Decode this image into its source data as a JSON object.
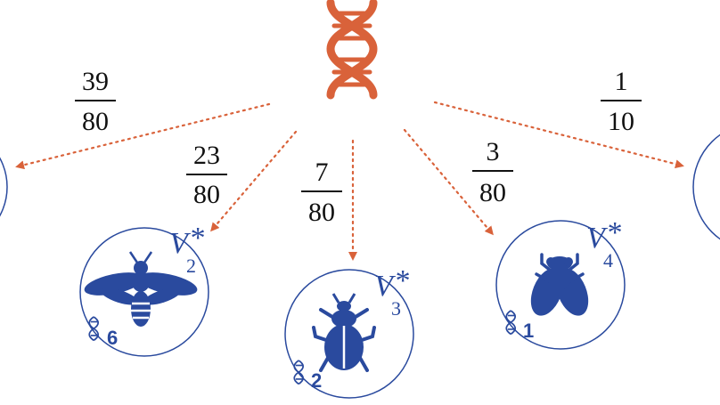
{
  "colors": {
    "dna": "#d9623a",
    "arrow": "#d9623a",
    "agent": "#2a4a9e",
    "text": "#111111"
  },
  "root": {
    "icon": "dna-icon"
  },
  "edges": [
    {
      "target": "offscreen-left",
      "numerator": "39",
      "denominator": "80"
    },
    {
      "target": "bee",
      "numerator": "23",
      "denominator": "80"
    },
    {
      "target": "beetle",
      "numerator": "7",
      "denominator": "80"
    },
    {
      "target": "fly",
      "numerator": "3",
      "denominator": "80"
    },
    {
      "target": "offscreen-right",
      "numerator": "1",
      "denominator": "10"
    }
  ],
  "agents": [
    {
      "id": "bee",
      "icon": "bee-icon",
      "label": "V",
      "star": "*",
      "sub": "2",
      "count": "6"
    },
    {
      "id": "beetle",
      "icon": "beetle-icon",
      "label": "V",
      "star": "*",
      "sub": "3",
      "count": "2"
    },
    {
      "id": "fly",
      "icon": "fly-icon",
      "label": "V",
      "star": "*",
      "sub": "4",
      "count": "1"
    }
  ]
}
